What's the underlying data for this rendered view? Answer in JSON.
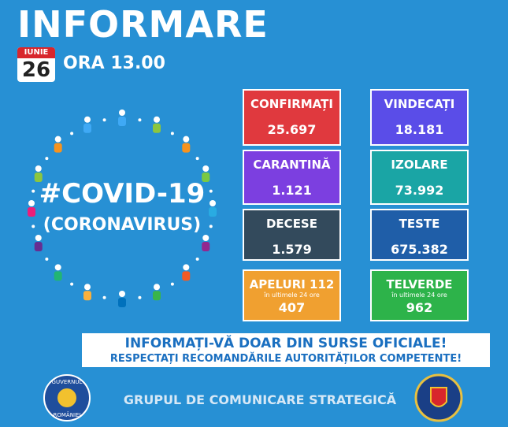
{
  "header": {
    "title": "INFORMARE",
    "month": "IUNIE",
    "day": "26",
    "time": "ORA 13.00"
  },
  "emblem": {
    "hashtag": "#COVID-19",
    "subtitle": "(CORONAVIRUS)"
  },
  "tiles": [
    {
      "label": "CONFIRMAȚI",
      "value": "25.697"
    },
    {
      "label": "VINDECAȚI",
      "value": "18.181"
    },
    {
      "label": "CARANTINĂ",
      "value": "1.121"
    },
    {
      "label": "IZOLARE",
      "value": "73.992"
    },
    {
      "label": "DECESE",
      "value": "1.579"
    },
    {
      "label": "TESTE",
      "value": "675.382"
    },
    {
      "label": "APELURI 112",
      "note": "în ultimele 24 ore",
      "value": "407"
    },
    {
      "label": "TELVERDE",
      "note": "în ultimele 24 ore",
      "value": "962"
    }
  ],
  "banner": {
    "line1": "INFORMAȚI-VĂ DOAR DIN SURSE OFICIALE!",
    "line2": "RESPECTAȚI RECOMANDĂRILE AUTORITĂȚILOR COMPETENTE!"
  },
  "footer": {
    "text": "GRUPUL DE COMUNICARE STRATEGICĂ",
    "seal_top": "GUVERNUL",
    "seal_bottom": "ROMÂNIEI"
  }
}
